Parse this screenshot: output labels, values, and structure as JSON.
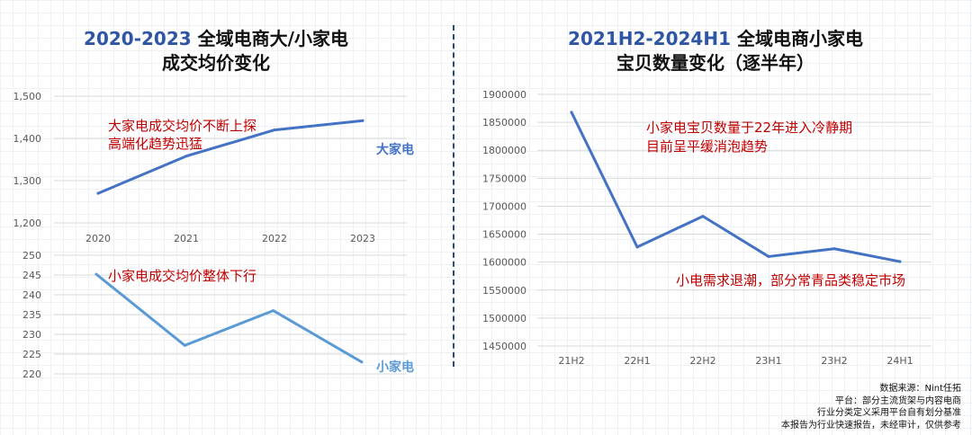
{
  "left_title": {
    "highlight": "2020-2023",
    "rest": " 全域电商大/小家电",
    "line2": "成交均价变化"
  },
  "right_title": {
    "highlight": "2021H2-2024H1",
    "rest": " 全域电商小家电",
    "line2": "宝贝数量变化（逐半年）"
  },
  "colors": {
    "big": "#4472c4",
    "small": "#5b9bd5",
    "annotation": "#c00000",
    "title_accent": "#2f56a5"
  },
  "chart_data": [
    {
      "type": "line",
      "title": "2020-2023 全域电商大/小家电成交均价变化",
      "categories": [
        "2020",
        "2021",
        "2022",
        "2023"
      ],
      "series": [
        {
          "name": "大家电",
          "values": [
            1270,
            1358,
            1420,
            1442
          ]
        }
      ],
      "ylim": [
        1200,
        1500
      ],
      "yticks": [
        "1,200",
        "1,300",
        "1,400",
        "1,500"
      ],
      "annotation": [
        "大家电成交均价不断上探",
        "高端化趋势迅猛"
      ]
    },
    {
      "type": "line",
      "categories": [
        "2020",
        "2021",
        "2022",
        "2023"
      ],
      "series": [
        {
          "name": "小家电",
          "values": [
            245.2,
            227.2,
            236.0,
            223.0
          ]
        }
      ],
      "ylim": [
        220,
        250
      ],
      "yticks": [
        "220",
        "225",
        "230",
        "235",
        "240",
        "245",
        "250"
      ],
      "annotation": [
        "小家电成交均价整体下行"
      ]
    },
    {
      "type": "line",
      "title": "2021H2-2024H1 全域电商小家电宝贝数量变化（逐半年）",
      "categories": [
        "21H2",
        "22H1",
        "22H2",
        "23H1",
        "23H2",
        "24H1"
      ],
      "series": [
        {
          "name": "小家电宝贝数量",
          "values": [
            1868000,
            1627000,
            1682000,
            1610000,
            1624000,
            1601000
          ]
        }
      ],
      "ylim": [
        1450000,
        1900000
      ],
      "yticks": [
        "1450000",
        "1500000",
        "1550000",
        "1600000",
        "1650000",
        "1700000",
        "1750000",
        "1800000",
        "1850000",
        "1900000"
      ],
      "annotations": [
        [
          "小家电宝贝数量于22年进入冷静期",
          "目前呈平缓消泡趋势"
        ],
        [
          "小电需求退潮，部分常青品类稳定市场"
        ]
      ]
    }
  ],
  "footer": [
    "数据来源：Nint任拓",
    "平台：部分主流货架与内容电商",
    "行业分类定义采用平台自有划分基准",
    "本报告为行业快速报告，未经审计，仅供参考"
  ]
}
